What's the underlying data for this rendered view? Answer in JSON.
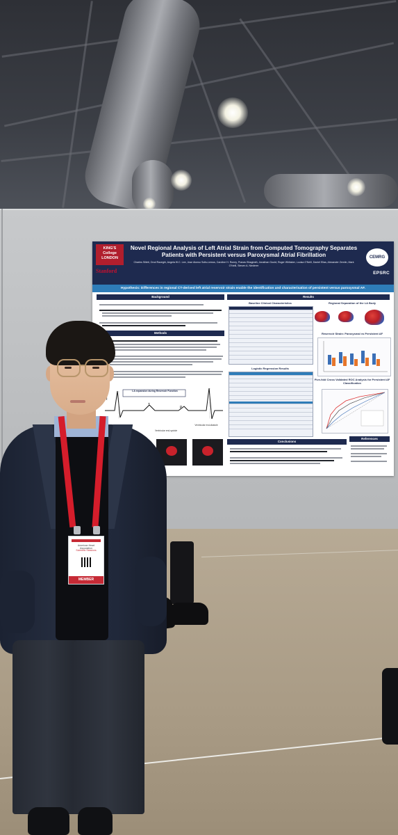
{
  "poster": {
    "title": "Novel Regional Analysis of Left Atrial Strain from Computed Tomography Separates Patients with Persistent versus Paroxysmal Atrial Fibrillation",
    "authors": "Charles Sillett, Orod Razeghi, Angela W.C. Lee, Jose Alonso Solis-Lemus, Caroline H. Roney, Pranav Bhagirath, Jonathan Gould, Roger Whitaker, Louisa O'Neill, Daniel Elias, Alexander Zemlin, Mark O'Neill, Steven A. Niederer",
    "logos": {
      "kcl": "KING'S College LONDON",
      "stanford": "Stanford",
      "cemrg": "CEMRG",
      "epsrc": "EPSRC"
    },
    "hypothesis": "Hypothesis: Differences in regional CT-derived left atrial reservoir strain enable the identification and characterisation of persistent versus paroxysmal AF.",
    "sections": {
      "background": "Background",
      "results": "Results",
      "methods": "Methods",
      "baseline": "Baseline Clinical Characteristics",
      "regional": "Regional Separation of the LA Body",
      "reservoir": "Reservoir Strain: Paroxysmal vs Persistent AF",
      "logistic": "Logistic Regression Results",
      "roc": "Five-fold Cross Validated ROC Analysis for Persistent AF Classification",
      "conclusions": "Conclusions",
      "references": "References"
    },
    "methods_figure": {
      "label": "LA expansion during Reservoir Function",
      "waves": [
        "R",
        "T",
        "P"
      ],
      "left_caption": "Ventricular end-systole",
      "right_caption": "Ventricular end-diastole"
    },
    "badge": {
      "org": "American Heart Association",
      "event": "Scientific Sessions",
      "member": "MEMBER"
    }
  }
}
